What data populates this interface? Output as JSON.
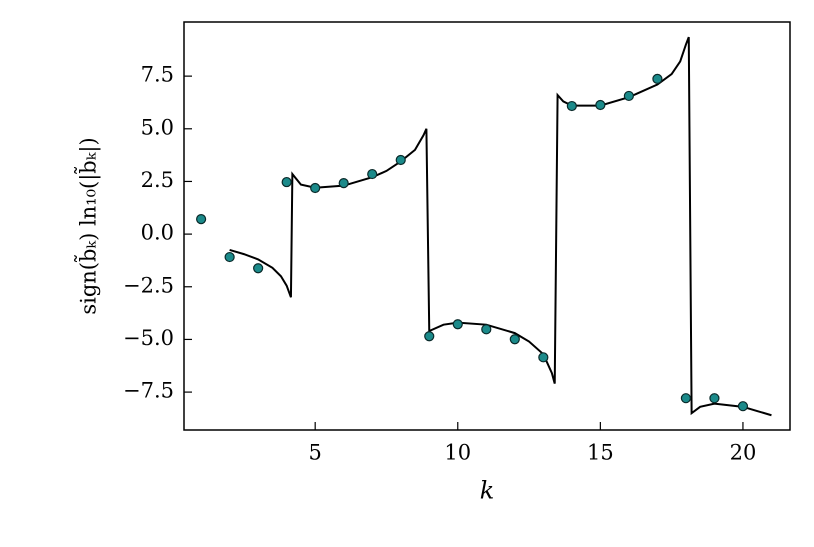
{
  "chart_data": {
    "type": "scatter",
    "xlabel": "k",
    "ylabel": "sign(b̃ₖ) ln₁₀(|b̃ₖ|)",
    "xlim": [
      0.4,
      21.65
    ],
    "ylim": [
      -9.3,
      10.07
    ],
    "xticks": [
      5,
      10,
      15,
      20
    ],
    "yticks": [
      {
        "value": -7.5,
        "label": "−7.5"
      },
      {
        "value": -5,
        "label": "−5.0"
      },
      {
        "value": -2.5,
        "label": "−2.5"
      },
      {
        "value": 0,
        "label": "0.0"
      },
      2.5,
      {
        "value": 5,
        "label": "5.0"
      },
      7.5
    ],
    "points": {
      "color": "#1b8a8a",
      "x": [
        1,
        2,
        3,
        4,
        5,
        6,
        7,
        8,
        9,
        10,
        11,
        12,
        13,
        14,
        15,
        16,
        17,
        18,
        19,
        20
      ],
      "y": [
        0.71,
        -1.09,
        -1.62,
        2.47,
        2.19,
        2.42,
        2.85,
        3.52,
        -4.85,
        -4.28,
        -4.52,
        -4.99,
        -5.85,
        6.08,
        6.13,
        6.56,
        7.37,
        -7.79,
        -7.79,
        -8.17
      ]
    },
    "curve": {
      "color": "#000000",
      "x": [
        2,
        2.5,
        3,
        3.5,
        3.8,
        4.0,
        4.15,
        4.2,
        4.5,
        5,
        6,
        7,
        7.5,
        8,
        8.5,
        8.8,
        8.9,
        9.0,
        9.5,
        10,
        11,
        12,
        12.5,
        13,
        13.3,
        13.4,
        13.5,
        13.7,
        14,
        15,
        16,
        17,
        17.5,
        17.8,
        18.0,
        18.1,
        18.2,
        18.5,
        19,
        20,
        20.5,
        21
      ],
      "y": [
        -0.75,
        -0.95,
        -1.2,
        -1.6,
        -2.0,
        -2.45,
        -3.0,
        2.85,
        2.35,
        2.2,
        2.3,
        2.7,
        3.0,
        3.45,
        4.0,
        4.7,
        5.0,
        -4.6,
        -4.3,
        -4.2,
        -4.3,
        -4.7,
        -5.1,
        -5.7,
        -6.6,
        -7.1,
        6.6,
        6.3,
        6.1,
        6.1,
        6.5,
        7.1,
        7.6,
        8.2,
        9.0,
        9.35,
        -8.5,
        -8.2,
        -8.05,
        -8.2,
        -8.4,
        -8.6
      ]
    }
  }
}
